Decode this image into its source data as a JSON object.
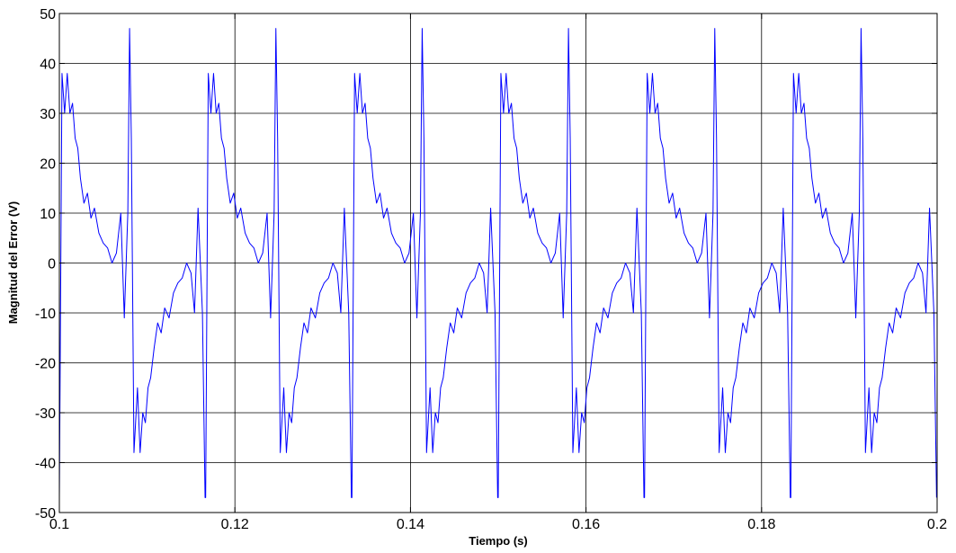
{
  "chart_data": {
    "type": "line",
    "title": "",
    "xlabel": "Tiempo (s)",
    "ylabel": "Magnitud del Error (V)",
    "xlim": [
      0.1,
      0.2
    ],
    "ylim": [
      -50,
      50
    ],
    "grid": true,
    "line_color": "#0000ff",
    "x_ticks": [
      0.1,
      0.12,
      0.14,
      0.16,
      0.18,
      0.2
    ],
    "x_tick_labels": [
      "0.1",
      "0.12",
      "0.14",
      "0.16",
      "0.18",
      "0.2"
    ],
    "y_ticks": [
      50,
      40,
      30,
      20,
      10,
      0,
      -10,
      -20,
      -30,
      -40,
      -50
    ],
    "y_tick_labels": [
      "50",
      "40",
      "30",
      "20",
      "10",
      "0",
      "-10",
      "-20",
      "-30",
      "-40",
      "-50"
    ],
    "series": [
      {
        "period": 0.016667,
        "x": [
          0.1,
          0.1003,
          0.1006,
          0.1009,
          0.1012,
          0.1015,
          0.1018,
          0.1021,
          0.1024,
          0.1028,
          0.1032,
          0.1036,
          0.104,
          0.1045,
          0.105,
          0.1055,
          0.106,
          0.1065,
          0.107,
          0.1074,
          0.1078,
          0.108,
          0.1082,
          0.1085,
          0.1089,
          0.1092,
          0.1095,
          0.1098,
          0.1101,
          0.1104,
          0.1108,
          0.1112,
          0.1116,
          0.112,
          0.1125,
          0.113,
          0.1135,
          0.114,
          0.1145,
          0.115,
          0.1154,
          0.1158,
          0.1163,
          0.1166
        ],
        "y": [
          -47,
          38,
          30,
          38,
          30,
          32,
          25,
          23,
          17,
          12,
          14,
          9,
          11,
          6,
          4,
          3,
          0,
          2,
          10,
          -11,
          10,
          47,
          25,
          -38,
          -25,
          -38,
          -30,
          -32,
          -25,
          -23,
          -17,
          -12,
          -14,
          -9,
          -11,
          -6,
          -4,
          -3,
          0,
          -2,
          -10,
          11,
          -10,
          -47
        ]
      }
    ]
  }
}
